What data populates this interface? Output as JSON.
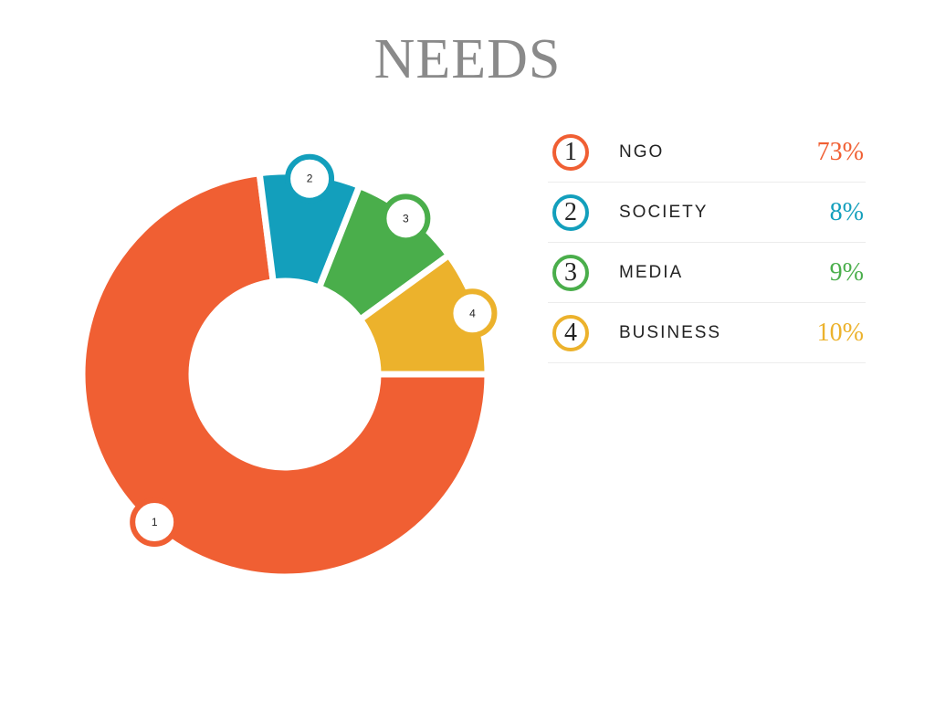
{
  "chart_data": {
    "type": "pie",
    "title": "NEEDS",
    "categories": [
      "NGO",
      "SOCIETY",
      "MEDIA",
      "BUSINESS"
    ],
    "numbers": [
      "1",
      "2",
      "3",
      "4"
    ],
    "values": [
      73,
      8,
      9,
      10
    ],
    "value_labels": [
      "73%",
      "8%",
      "9%",
      "10%"
    ],
    "colors": [
      "#f05f33",
      "#139fbc",
      "#4aae4b",
      "#ecb22c"
    ],
    "donut": true,
    "legend": "right"
  }
}
